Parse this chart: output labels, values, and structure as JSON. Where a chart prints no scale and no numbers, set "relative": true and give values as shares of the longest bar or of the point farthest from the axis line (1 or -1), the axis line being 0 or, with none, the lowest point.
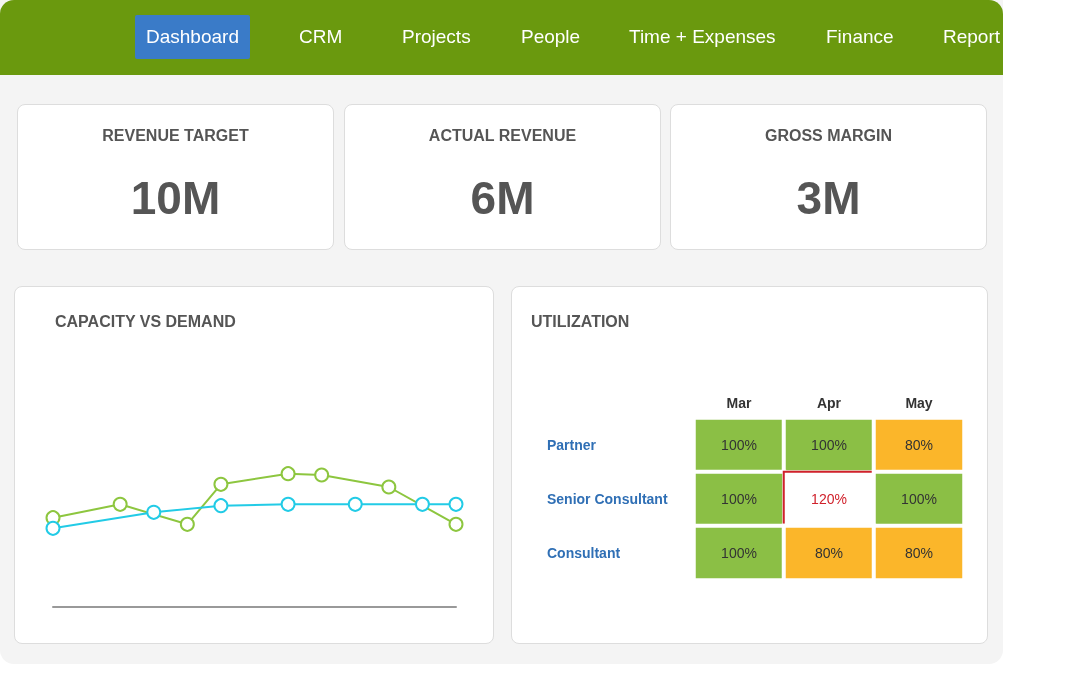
{
  "chart_data": [
    {
      "type": "other",
      "annotations": [
        "Dashboard",
        "CRM",
        "Projects",
        "People",
        "Time + Expenses",
        "Finance",
        "Report"
      ]
    },
    {
      "type": "other",
      "title": "REVENUE TARGET",
      "annotations": [
        "10M"
      ]
    },
    {
      "type": "other",
      "title": "ACTUAL REVENUE",
      "annotations": [
        "6M"
      ]
    },
    {
      "type": "other",
      "title": "GROSS MARGIN",
      "annotations": [
        "3M"
      ]
    },
    {
      "type": "line",
      "title": "CAPACITY VS DEMAND",
      "relative": true,
      "marker": "circle",
      "categories": [
        null,
        null,
        null,
        null,
        null,
        null,
        null,
        null,
        null,
        null,
        null,
        null,
        null
      ],
      "series": [
        {
          "color": "#8dc63f",
          "values": [
            0.67,
            null,
            0.77,
            null,
            0.62,
            0.92,
            null,
            1,
            0.99,
            null,
            0.9,
            null,
            0.62
          ]
        },
        {
          "color": "#22cbe6",
          "values": [
            0.59,
            null,
            null,
            0.71,
            null,
            0.76,
            null,
            0.77,
            null,
            0.77,
            null,
            0.77,
            0.77
          ]
        }
      ]
    },
    {
      "type": "heatmap",
      "title": "UTILIZATION",
      "categories": [
        "Mar",
        "Apr",
        "May"
      ],
      "y_categories": [
        "Partner",
        "Senior Consultant",
        "Consultant"
      ],
      "cells": [
        [
          100,
          100,
          80
        ],
        [
          100,
          120,
          100
        ],
        [
          100,
          80,
          80
        ]
      ],
      "cell_labels": [
        [
          "100%",
          "100%",
          "80%"
        ],
        [
          "100%",
          "120%",
          "100%"
        ],
        [
          "100%",
          "80%",
          "80%"
        ]
      ]
    }
  ]
}
